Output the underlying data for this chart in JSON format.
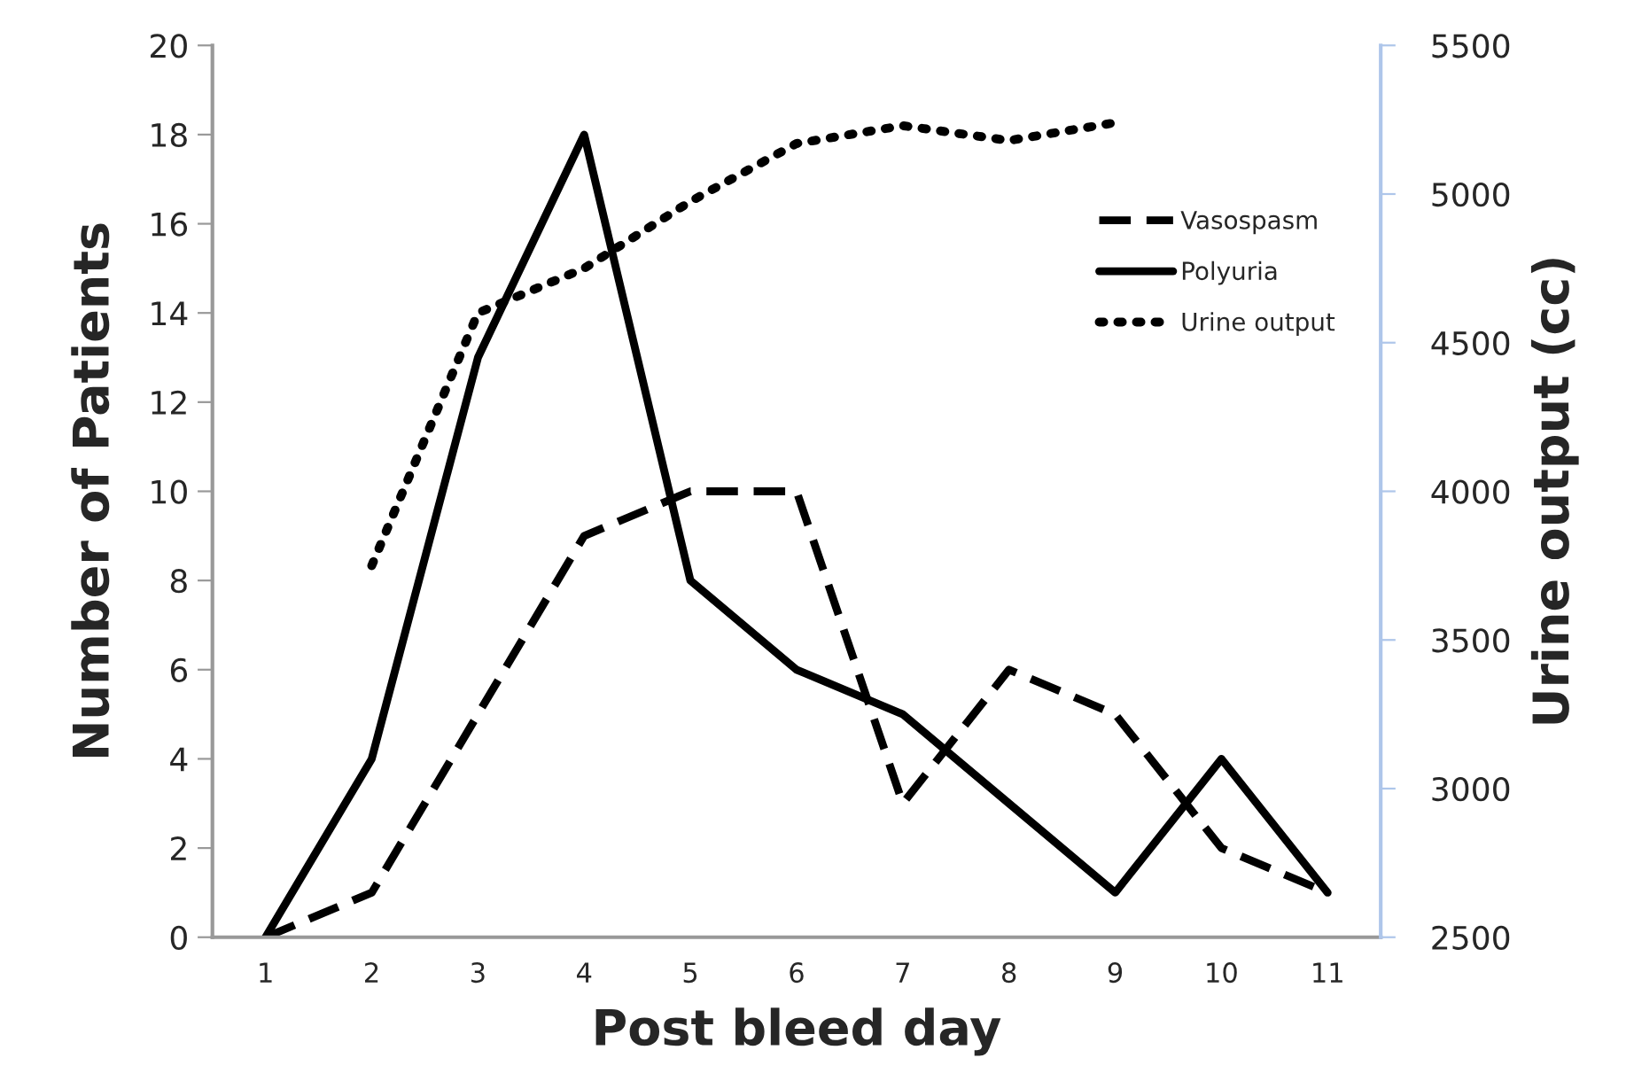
{
  "chart_data": {
    "type": "line",
    "xlabel": "Post bleed day",
    "ylabel": "Number of Patients",
    "y2label": "Urine output (cc)",
    "categories": [
      "1",
      "2",
      "3",
      "4",
      "5",
      "6",
      "7",
      "8",
      "9",
      "10",
      "11"
    ],
    "series": [
      {
        "name": "Vasospasm",
        "color": "#000000",
        "line_style": "dashed",
        "values": [
          0,
          1,
          5,
          9,
          10,
          10,
          3,
          6,
          5,
          2,
          1
        ]
      },
      {
        "name": "Polyuria",
        "color": "#000000",
        "line_style": "solid",
        "values": [
          0,
          4,
          13,
          18,
          8,
          6,
          5,
          3,
          1,
          4,
          1
        ]
      },
      {
        "name": "Urine output",
        "color": "#000000",
        "line_style": "dotted",
        "axis": "y2",
        "values": [
          null,
          3750,
          4600,
          4750,
          4975,
          5170,
          5230,
          5180,
          5240,
          null,
          null
        ]
      }
    ],
    "ylim": [
      0,
      20
    ],
    "yticks": [
      0,
      2,
      4,
      6,
      8,
      10,
      12,
      14,
      16,
      18,
      20
    ],
    "y2lim": [
      2500,
      5500
    ],
    "y2ticks": [
      2500,
      3000,
      3500,
      4000,
      4500,
      5000,
      5500
    ],
    "grid": false,
    "legend": "top right",
    "marker": "none"
  }
}
